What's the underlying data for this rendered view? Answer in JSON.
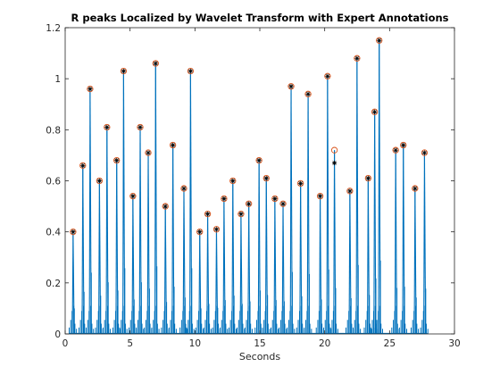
{
  "chart_data": {
    "type": "line",
    "title": "R peaks Localized by Wavelet Transform with Expert Annotations",
    "xlabel": "Seconds",
    "ylabel": "",
    "xlim": [
      0,
      30
    ],
    "ylim": [
      0,
      1.2
    ],
    "xticks": [
      "0",
      "5",
      "10",
      "15",
      "20",
      "25",
      "30"
    ],
    "yticks": [
      "0",
      "0.2",
      "0.4",
      "0.6",
      "0.8",
      "1",
      "1.2"
    ],
    "grid": false,
    "legend": "none",
    "colors": {
      "signal": "#0072BD",
      "wavelet_peaks": "#D95319",
      "expert_annotations": "#000000",
      "axes": "#262626"
    },
    "series": [
      {
        "marker": "circle",
        "x": [
          0.61,
          1.36,
          1.92,
          2.64,
          3.22,
          3.97,
          4.5,
          5.22,
          5.78,
          6.4,
          6.97,
          7.72,
          8.3,
          9.15,
          9.66,
          10.37,
          10.98,
          11.66,
          12.24,
          12.92,
          13.55,
          14.15,
          14.94,
          15.5,
          16.16,
          16.79,
          17.41,
          18.14,
          18.72,
          19.65,
          20.22,
          20.75,
          21.94,
          22.49,
          23.35,
          23.85,
          24.2,
          25.47,
          26.06,
          26.96,
          27.69
        ],
        "y": [
          0.4,
          0.66,
          0.96,
          0.6,
          0.81,
          0.68,
          1.03,
          0.54,
          0.81,
          0.71,
          1.06,
          0.5,
          0.74,
          0.57,
          1.03,
          0.4,
          0.47,
          0.41,
          0.53,
          0.6,
          0.47,
          0.51,
          0.68,
          0.61,
          0.53,
          0.51,
          0.97,
          0.59,
          0.94,
          0.54,
          1.01,
          0.72,
          0.56,
          1.08,
          0.61,
          0.87,
          1.15,
          0.72,
          0.74,
          0.57,
          0.71
        ]
      },
      {
        "marker": "asterisk",
        "x": [
          0.61,
          1.36,
          1.92,
          2.64,
          3.22,
          3.97,
          4.5,
          5.22,
          5.78,
          6.4,
          6.97,
          7.72,
          8.3,
          9.15,
          9.66,
          10.37,
          10.98,
          11.66,
          12.24,
          12.92,
          13.55,
          14.15,
          14.94,
          15.5,
          16.16,
          16.79,
          17.41,
          18.14,
          18.72,
          19.65,
          20.22,
          20.75,
          21.94,
          22.49,
          23.35,
          23.85,
          24.2,
          25.47,
          26.06,
          26.96,
          27.69
        ],
        "y": [
          0.4,
          0.66,
          0.96,
          0.6,
          0.81,
          0.68,
          1.03,
          0.54,
          0.81,
          0.71,
          1.06,
          0.5,
          0.74,
          0.57,
          1.03,
          0.4,
          0.47,
          0.41,
          0.53,
          0.6,
          0.47,
          0.51,
          0.68,
          0.61,
          0.53,
          0.51,
          0.97,
          0.59,
          0.94,
          0.54,
          1.01,
          0.67,
          0.56,
          1.08,
          0.61,
          0.87,
          1.15,
          0.72,
          0.74,
          0.57,
          0.71
        ]
      }
    ]
  }
}
